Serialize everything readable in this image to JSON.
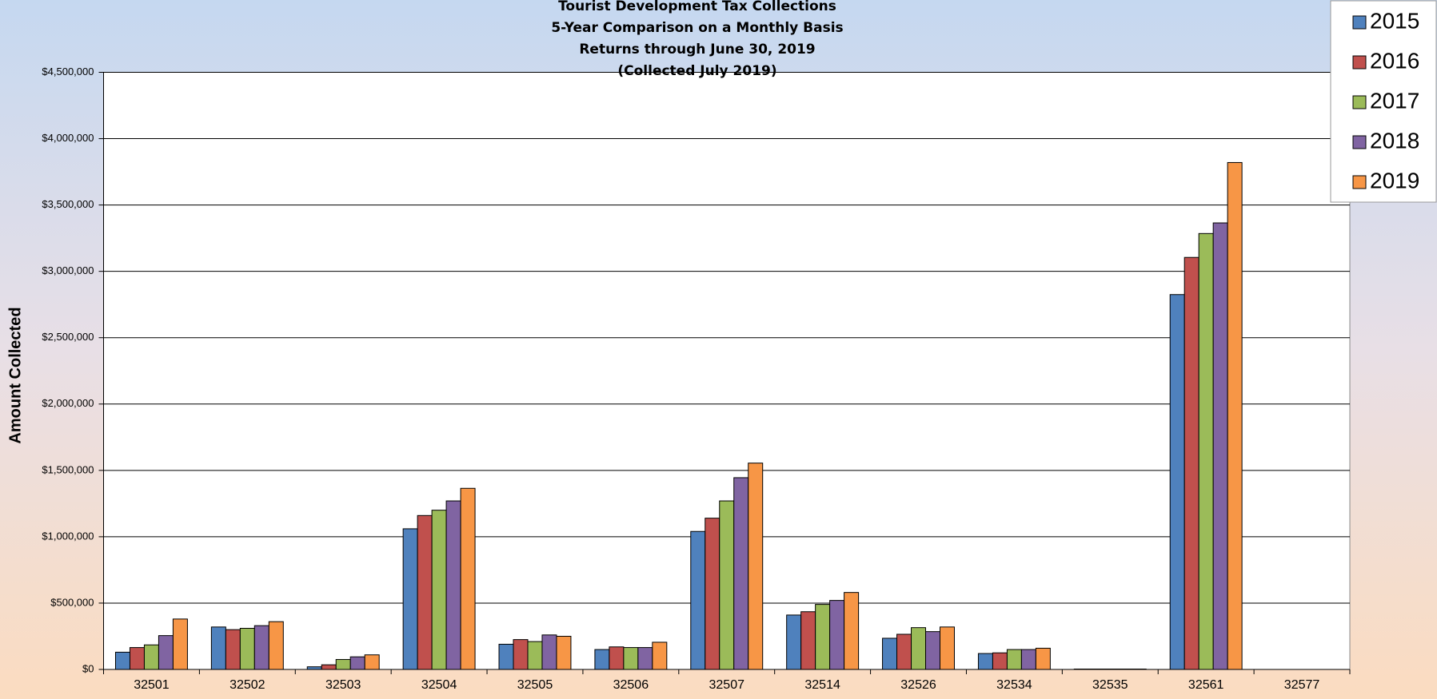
{
  "chart_data": {
    "type": "bar",
    "title": [
      "Tourist Development Tax Collections",
      "5-Year Comparison on a Monthly Basis",
      "Returns through June 30, 2019",
      "(Collected July 2019)"
    ],
    "y_label": "Amount Collected",
    "categories": [
      "32501",
      "32502",
      "32503",
      "32504",
      "32505",
      "32506",
      "32507",
      "32514",
      "32526",
      "32534",
      "32535",
      "32561",
      "32577"
    ],
    "series": [
      {
        "name": "2015",
        "color": "#4f81bd",
        "values": [
          130000,
          320000,
          20000,
          1060000,
          190000,
          150000,
          1040000,
          410000,
          235000,
          120000,
          3000,
          2825000,
          0
        ]
      },
      {
        "name": "2016",
        "color": "#c0504d",
        "values": [
          165000,
          300000,
          35000,
          1160000,
          225000,
          170000,
          1140000,
          435000,
          265000,
          125000,
          3000,
          3105000,
          0
        ]
      },
      {
        "name": "2017",
        "color": "#9bbb59",
        "values": [
          185000,
          310000,
          75000,
          1200000,
          210000,
          165000,
          1270000,
          490000,
          315000,
          150000,
          3000,
          3285000,
          0
        ]
      },
      {
        "name": "2018",
        "color": "#8064a2",
        "values": [
          255000,
          330000,
          95000,
          1270000,
          260000,
          165000,
          1445000,
          520000,
          285000,
          150000,
          3000,
          3365000,
          0
        ]
      },
      {
        "name": "2019",
        "color": "#f79646",
        "values": [
          380000,
          360000,
          110000,
          1365000,
          250000,
          205000,
          1555000,
          580000,
          320000,
          160000,
          3000,
          3820000,
          0
        ]
      }
    ],
    "ylim": [
      0,
      4500000
    ],
    "yticks": [
      {
        "value": 0,
        "label": "$0"
      },
      {
        "value": 500000,
        "label": "$500,000"
      },
      {
        "value": 1000000,
        "label": "$1,000,000"
      },
      {
        "value": 1500000,
        "label": "$1,500,000"
      },
      {
        "value": 2000000,
        "label": "$2,000,000"
      },
      {
        "value": 2500000,
        "label": "$2,500,000"
      },
      {
        "value": 3000000,
        "label": "$3,000,000"
      },
      {
        "value": 3500000,
        "label": "$3,500,000"
      },
      {
        "value": 4000000,
        "label": "$4,000,000"
      },
      {
        "value": 4500000,
        "label": "$4,500,000"
      }
    ],
    "grid": true,
    "legend": "top-right"
  }
}
